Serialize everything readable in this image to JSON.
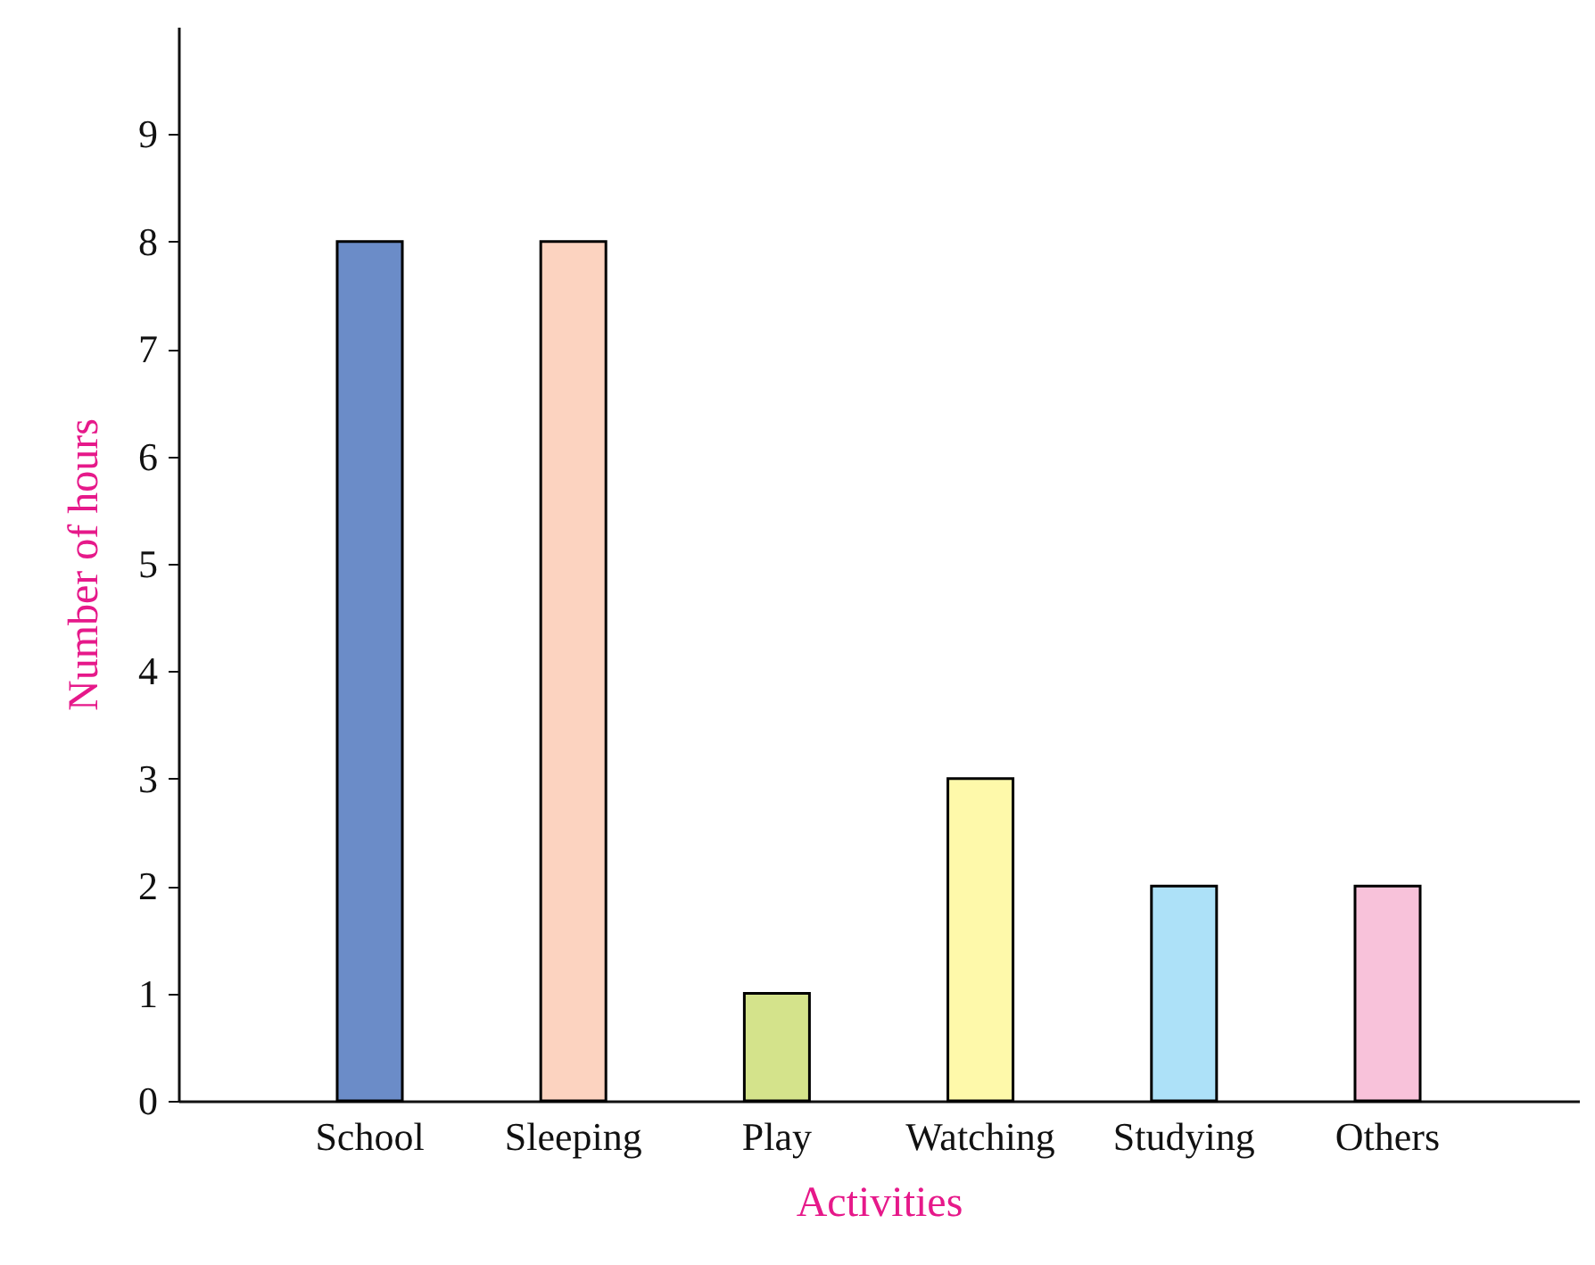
{
  "chart_data": {
    "type": "bar",
    "xlabel": "Activities",
    "ylabel": "Number of hours",
    "categories": [
      "School",
      "Sleeping",
      "Play",
      "Watching",
      "Studying",
      "Others"
    ],
    "values": [
      8,
      8,
      1,
      3,
      2,
      2
    ],
    "colors": [
      "#6b8cc8",
      "#fcd3c0",
      "#d4e38b",
      "#fef9aa",
      "#ade1f8",
      "#f8c2da"
    ],
    "ylim": [
      0,
      10
    ],
    "yticks": [
      0,
      1,
      2,
      3,
      4,
      5,
      6,
      7,
      8,
      9
    ],
    "grid": false
  }
}
